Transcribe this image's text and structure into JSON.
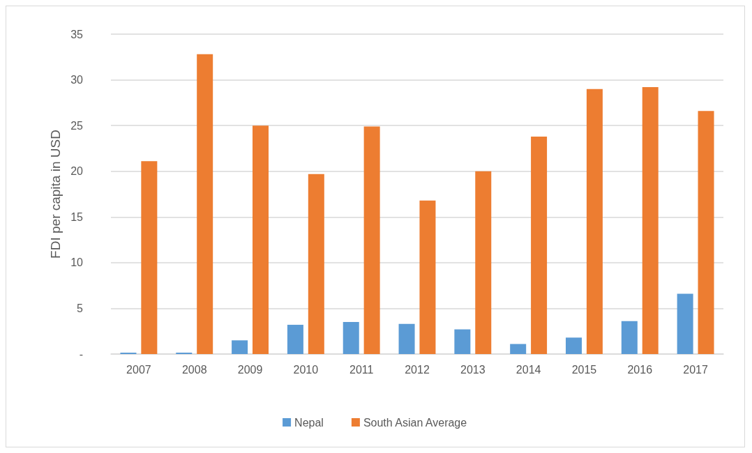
{
  "chart_data": {
    "type": "bar",
    "ylabel": "FDI per capita in USD",
    "categories": [
      "2007",
      "2008",
      "2009",
      "2010",
      "2011",
      "2012",
      "2013",
      "2014",
      "2015",
      "2016",
      "2017"
    ],
    "series": [
      {
        "name": "Nepal",
        "color": "#5b9bd5",
        "values": [
          0.15,
          0.15,
          1.5,
          3.2,
          3.5,
          3.3,
          2.7,
          1.1,
          1.8,
          3.6,
          6.6
        ]
      },
      {
        "name": "South Asian Average",
        "color": "#ed7d31",
        "values": [
          21.1,
          32.8,
          25.0,
          19.7,
          24.9,
          16.8,
          20.0,
          23.8,
          29.0,
          29.2,
          26.6
        ]
      }
    ],
    "ylim": [
      0,
      35
    ],
    "yticks": [
      {
        "value": 0,
        "label": "-"
      },
      5,
      10,
      15,
      20,
      25,
      30,
      35
    ],
    "grid": "y",
    "legend": "bottom"
  }
}
